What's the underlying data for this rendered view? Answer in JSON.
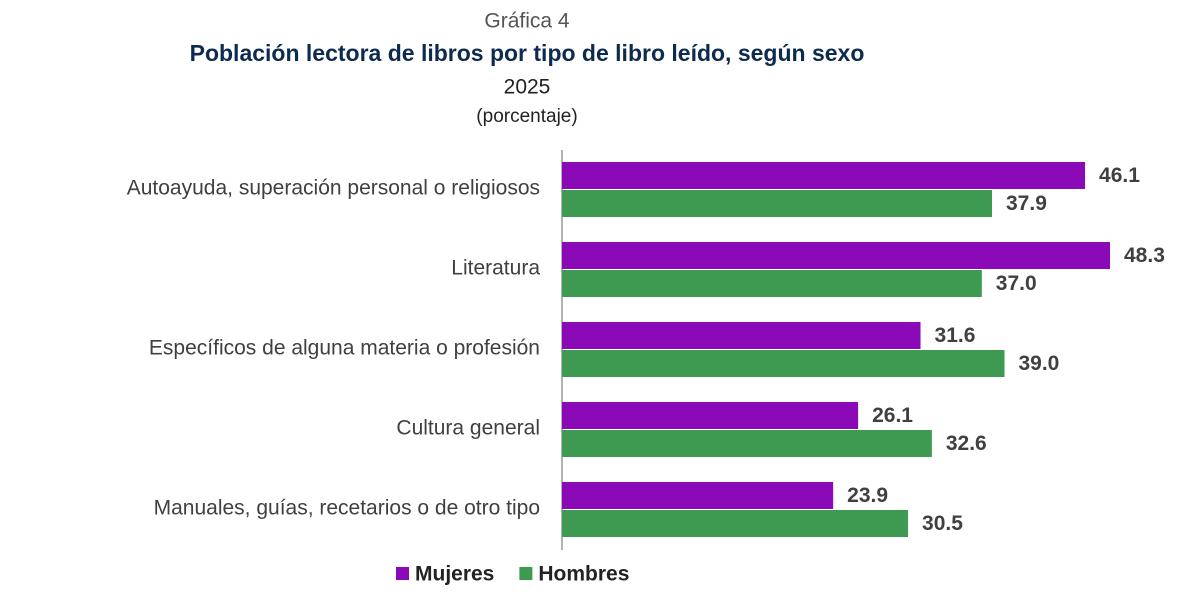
{
  "chart_data": {
    "type": "barh",
    "label": "Gráfica 4",
    "title": "Población lectora de libros por tipo de libro leído, según sexo",
    "subtitle": "2025",
    "unit_note": "(porcentaje)",
    "categories": [
      "Autoayuda, superación personal o religiosos",
      "Literatura",
      "Específicos de alguna materia o profesión",
      "Cultura general",
      "Manuales, guías, recetarios o de otro tipo"
    ],
    "series": [
      {
        "name": "Mujeres",
        "color": "#8a0ab8",
        "values": [
          46.1,
          48.3,
          31.6,
          26.1,
          23.9
        ],
        "value_labels": [
          "46.1",
          "48.3",
          "31.6",
          "26.1",
          "23.9"
        ]
      },
      {
        "name": "Hombres",
        "color": "#3e9a50",
        "values": [
          37.9,
          37.0,
          39.0,
          32.6,
          30.5
        ],
        "value_labels": [
          "37.9",
          "37.0",
          "39.0",
          "32.6",
          "30.5"
        ]
      }
    ]
  }
}
